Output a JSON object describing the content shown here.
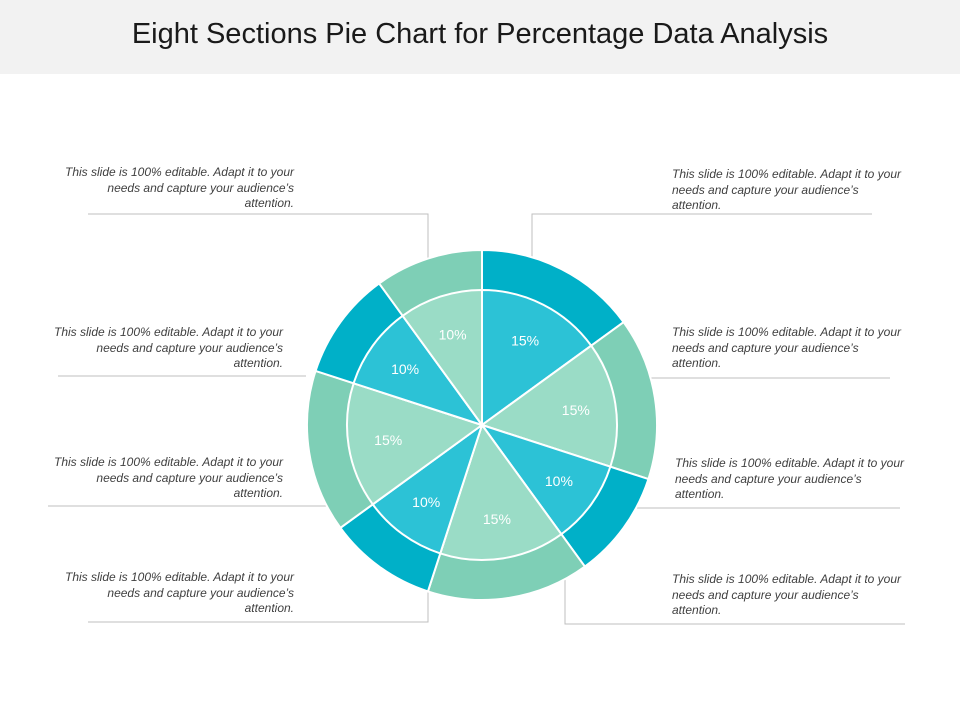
{
  "title": "Eight Sections Pie Chart for Percentage Data Analysis",
  "colors": {
    "teal_outer": "#00b0c8",
    "teal_inner": "#2cc2d6",
    "green_outer": "#7ecfb6",
    "green_inner": "#9adcc6"
  },
  "chart_data": {
    "type": "pie",
    "title": "Eight Sections Pie Chart for Percentage Data Analysis",
    "slices": [
      {
        "label": "15%",
        "value": 15,
        "color_scheme": "teal"
      },
      {
        "label": "15%",
        "value": 15,
        "color_scheme": "green"
      },
      {
        "label": "10%",
        "value": 10,
        "color_scheme": "teal"
      },
      {
        "label": "15%",
        "value": 15,
        "color_scheme": "green"
      },
      {
        "label": "10%",
        "value": 10,
        "color_scheme": "teal"
      },
      {
        "label": "15%",
        "value": 15,
        "color_scheme": "green"
      },
      {
        "label": "10%",
        "value": 10,
        "color_scheme": "teal"
      },
      {
        "label": "10%",
        "value": 10,
        "color_scheme": "green"
      }
    ]
  },
  "notes": {
    "top_right": "This slide is 100% editable. Adapt it to your needs and capture your audience’s attention.",
    "mid_right": "This slide is 100% editable. Adapt it to your needs and capture your audience’s attention.",
    "lower_right": "This slide is 100% editable. Adapt it to your needs and capture your audience’s attention.",
    "bottom_right": "This slide is 100% editable. Adapt it to your needs and capture your audience’s attention.",
    "top_left": "This slide is 100% editable. Adapt it to your needs and capture your audience’s attention.",
    "mid_left": "This slide is 100% editable. Adapt it to your needs and capture your audience’s attention.",
    "lower_left": "This slide is 100% editable. Adapt it to your needs and capture your audience’s attention.",
    "bottom_left": "This slide is 100% editable. Adapt it to your needs and capture your audience’s attention."
  }
}
